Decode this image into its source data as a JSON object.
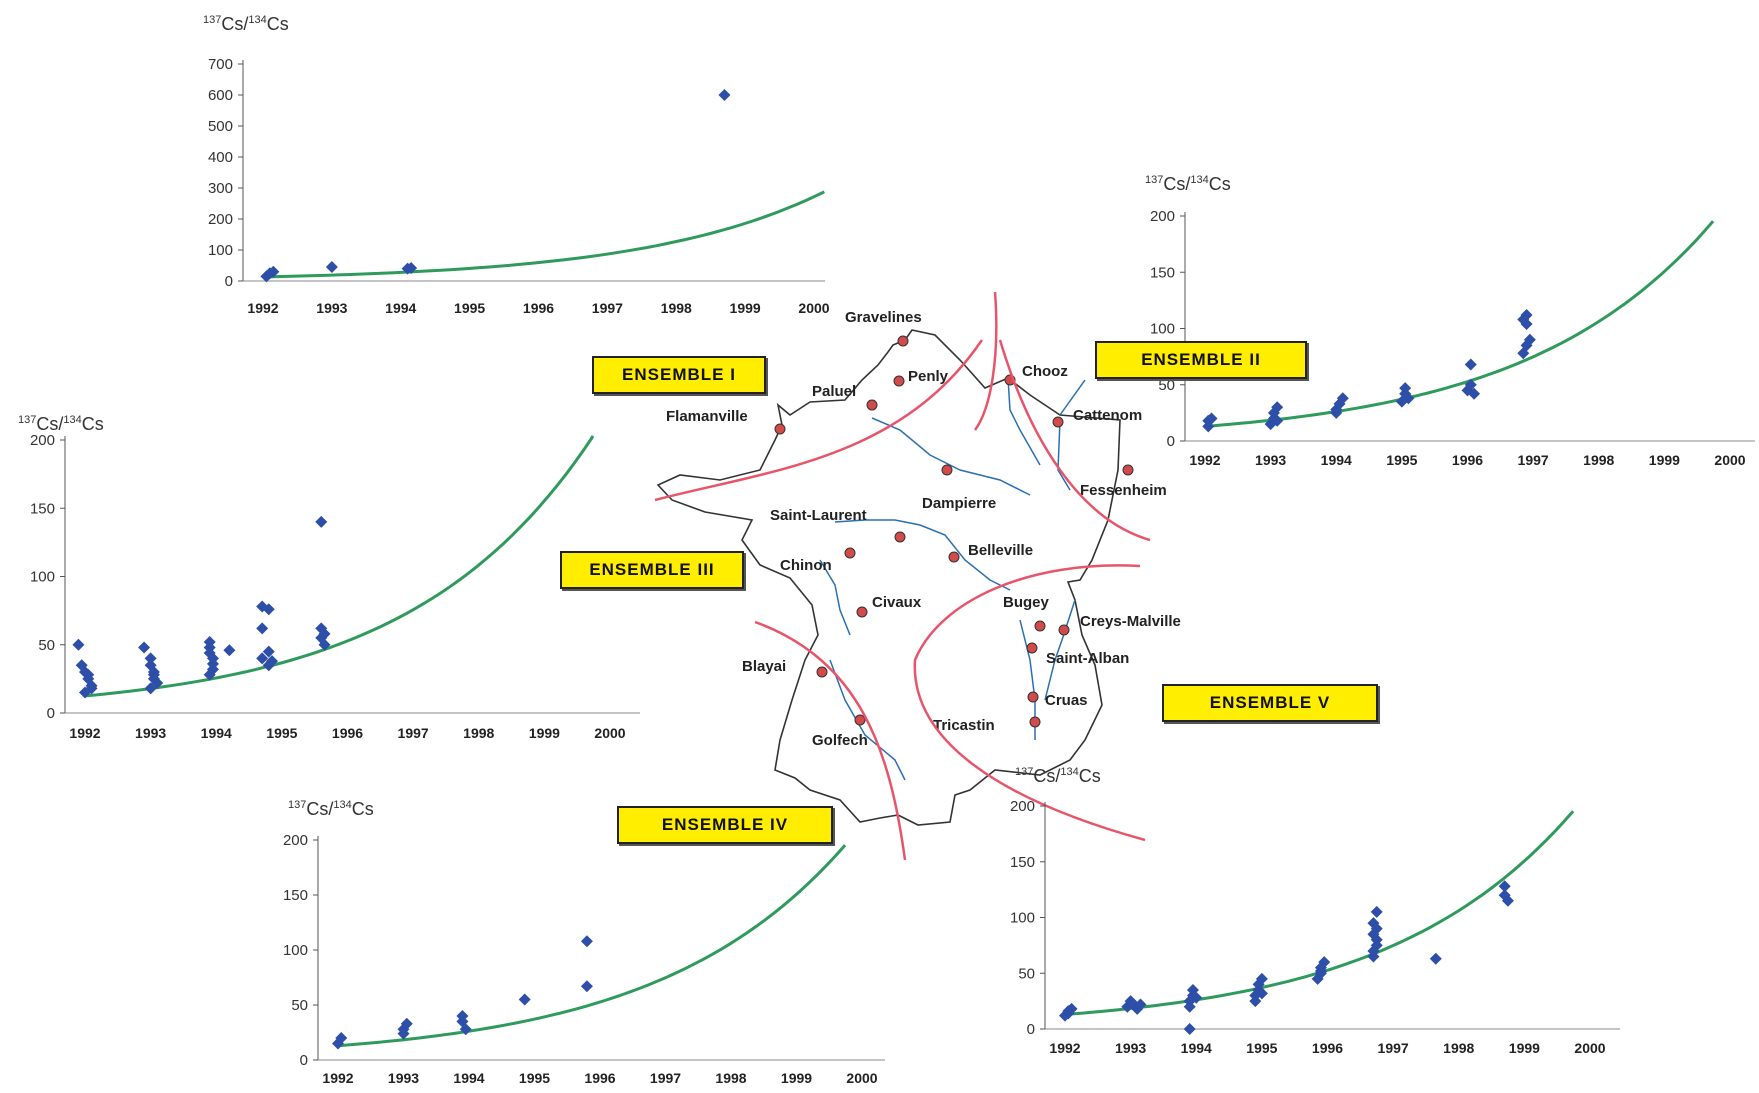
{
  "colors": {
    "point": "#2d4fa8",
    "trend": "#2e9a5c",
    "boundary": "#e8556a",
    "river": "#2a6fb3",
    "site": "#d24a4a",
    "outline": "#333333",
    "label_bg": "#ffee00"
  },
  "ensembles": [
    {
      "id": "I",
      "label": "ENSEMBLE I"
    },
    {
      "id": "II",
      "label": "ENSEMBLE II"
    },
    {
      "id": "III",
      "label": "ENSEMBLE III"
    },
    {
      "id": "IV",
      "label": "ENSEMBLE IV"
    },
    {
      "id": "V",
      "label": "ENSEMBLE V"
    }
  ],
  "map": {
    "sites": [
      "Gravelines",
      "Penly",
      "Paluel",
      "Flamanville",
      "Chooz",
      "Cattenom",
      "Fessenheim",
      "Dampierre",
      "Saint-Laurent",
      "Belleville",
      "Chinon",
      "Civaux",
      "Bugey",
      "Creys-Malville",
      "Saint-Alban",
      "Cruas",
      "Tricastin",
      "Blayai",
      "Golfech"
    ]
  },
  "chart_data": [
    {
      "id": "I",
      "type": "scatter",
      "ylabel_main": "Cs/",
      "ylabel_sup1": "137",
      "ylabel_sup2": "134",
      "ylabel_tail": "Cs",
      "ylim": [
        0,
        700
      ],
      "yticks": [
        0,
        100,
        200,
        300,
        400,
        500,
        600,
        700
      ],
      "xlim": [
        1992,
        2000
      ],
      "xticks": [
        1992,
        1993,
        1994,
        1995,
        1996,
        1997,
        1998,
        1999,
        2000
      ],
      "points": [
        [
          1992.05,
          15
        ],
        [
          1992.1,
          25
        ],
        [
          1992.15,
          30
        ],
        [
          1993.0,
          45
        ],
        [
          1994.1,
          40
        ],
        [
          1994.15,
          42
        ],
        [
          1998.7,
          600
        ]
      ],
      "trend": {
        "a": 13,
        "r": 0.38
      }
    },
    {
      "id": "II",
      "type": "scatter",
      "ylabel_main": "Cs/",
      "ylabel_sup1": "137",
      "ylabel_sup2": "134",
      "ylabel_tail": "Cs",
      "ylim": [
        0,
        200
      ],
      "yticks": [
        0,
        50,
        100,
        150,
        200
      ],
      "xlim": [
        1992,
        2000
      ],
      "xticks": [
        1992,
        1993,
        1994,
        1995,
        1996,
        1997,
        1998,
        1999,
        2000
      ],
      "points": [
        [
          1992.05,
          13
        ],
        [
          1992.05,
          18
        ],
        [
          1992.1,
          20
        ],
        [
          1993.0,
          15
        ],
        [
          1993.05,
          20
        ],
        [
          1993.05,
          25
        ],
        [
          1993.1,
          30
        ],
        [
          1993.1,
          18
        ],
        [
          1994.0,
          28
        ],
        [
          1994.05,
          33
        ],
        [
          1994.1,
          38
        ],
        [
          1994.0,
          25
        ],
        [
          1995.0,
          35
        ],
        [
          1995.05,
          42
        ],
        [
          1995.05,
          47
        ],
        [
          1995.1,
          38
        ],
        [
          1996.0,
          45
        ],
        [
          1996.05,
          50
        ],
        [
          1996.05,
          68
        ],
        [
          1996.1,
          42
        ],
        [
          1996.85,
          78
        ],
        [
          1996.9,
          85
        ],
        [
          1996.95,
          90
        ],
        [
          1996.85,
          108
        ],
        [
          1996.9,
          112
        ],
        [
          1996.9,
          104
        ]
      ],
      "trend": {
        "a": 13,
        "r": 0.35
      }
    },
    {
      "id": "III",
      "type": "scatter",
      "ylabel_main": "Cs/",
      "ylabel_sup1": "137",
      "ylabel_sup2": "134",
      "ylabel_tail": "Cs",
      "ylim": [
        0,
        200
      ],
      "yticks": [
        0,
        50,
        100,
        150,
        200
      ],
      "xlim": [
        1992,
        2000
      ],
      "xticks": [
        1992,
        1993,
        1994,
        1995,
        1996,
        1997,
        1998,
        1999,
        2000
      ],
      "points": [
        [
          1991.9,
          50
        ],
        [
          1991.95,
          35
        ],
        [
          1992.0,
          30
        ],
        [
          1992.05,
          25
        ],
        [
          1992.1,
          20
        ],
        [
          1992.0,
          15
        ],
        [
          1992.1,
          18
        ],
        [
          1992.05,
          28
        ],
        [
          1992.9,
          48
        ],
        [
          1993.0,
          40
        ],
        [
          1993.0,
          35
        ],
        [
          1993.05,
          30
        ],
        [
          1993.05,
          25
        ],
        [
          1993.1,
          22
        ],
        [
          1993.0,
          18
        ],
        [
          1993.05,
          28
        ],
        [
          1993.9,
          52
        ],
        [
          1993.9,
          48
        ],
        [
          1993.9,
          44
        ],
        [
          1993.95,
          40
        ],
        [
          1993.95,
          36
        ],
        [
          1993.95,
          32
        ],
        [
          1993.9,
          28
        ],
        [
          1994.2,
          46
        ],
        [
          1994.7,
          78
        ],
        [
          1994.8,
          76
        ],
        [
          1994.7,
          62
        ],
        [
          1994.7,
          40
        ],
        [
          1994.8,
          45
        ],
        [
          1994.85,
          38
        ],
        [
          1994.8,
          35
        ],
        [
          1995.6,
          140
        ],
        [
          1995.6,
          62
        ],
        [
          1995.65,
          58
        ],
        [
          1995.6,
          55
        ],
        [
          1995.65,
          50
        ]
      ],
      "trend": {
        "a": 12.5,
        "r": 0.36
      }
    },
    {
      "id": "IV",
      "type": "scatter",
      "ylabel_main": "Cs/",
      "ylabel_sup1": "137",
      "ylabel_sup2": "134",
      "ylabel_tail": "Cs",
      "ylim": [
        0,
        200
      ],
      "yticks": [
        0,
        50,
        100,
        150,
        200
      ],
      "xlim": [
        1992,
        2000
      ],
      "xticks": [
        1992,
        1993,
        1994,
        1995,
        1996,
        1997,
        1998,
        1999,
        2000
      ],
      "points": [
        [
          1992.0,
          15
        ],
        [
          1992.05,
          20
        ],
        [
          1993.0,
          28
        ],
        [
          1993.05,
          33
        ],
        [
          1993.0,
          24
        ],
        [
          1993.9,
          40
        ],
        [
          1993.9,
          35
        ],
        [
          1993.95,
          28
        ],
        [
          1994.85,
          55
        ],
        [
          1995.8,
          108
        ],
        [
          1995.8,
          67
        ]
      ],
      "trend": {
        "a": 13,
        "r": 0.35
      }
    },
    {
      "id": "V",
      "type": "scatter",
      "ylabel_main": "Cs/",
      "ylabel_sup1": "137",
      "ylabel_sup2": "134",
      "ylabel_tail": "Cs",
      "ylim": [
        0,
        200
      ],
      "yticks": [
        0,
        50,
        100,
        150,
        200
      ],
      "xlim": [
        1992,
        2000
      ],
      "xticks": [
        1992,
        1993,
        1994,
        1995,
        1996,
        1997,
        1998,
        1999,
        2000
      ],
      "points": [
        [
          1992.0,
          12
        ],
        [
          1992.05,
          16
        ],
        [
          1992.1,
          18
        ],
        [
          1992.05,
          14
        ],
        [
          1992.95,
          20
        ],
        [
          1993.0,
          25
        ],
        [
          1993.05,
          22
        ],
        [
          1993.1,
          18
        ],
        [
          1993.15,
          22
        ],
        [
          1993.9,
          0
        ],
        [
          1993.9,
          20
        ],
        [
          1993.9,
          25
        ],
        [
          1993.95,
          30
        ],
        [
          1993.95,
          35
        ],
        [
          1994.0,
          28
        ],
        [
          1994.9,
          25
        ],
        [
          1994.9,
          30
        ],
        [
          1994.95,
          35
        ],
        [
          1994.95,
          40
        ],
        [
          1995.0,
          45
        ],
        [
          1995.0,
          32
        ],
        [
          1995.85,
          45
        ],
        [
          1995.9,
          50
        ],
        [
          1995.9,
          55
        ],
        [
          1995.95,
          60
        ],
        [
          1995.9,
          52
        ],
        [
          1996.7,
          65
        ],
        [
          1996.7,
          70
        ],
        [
          1996.75,
          75
        ],
        [
          1996.75,
          80
        ],
        [
          1996.7,
          85
        ],
        [
          1996.75,
          90
        ],
        [
          1996.7,
          95
        ],
        [
          1996.75,
          105
        ],
        [
          1997.65,
          63
        ],
        [
          1998.7,
          120
        ],
        [
          1998.7,
          128
        ],
        [
          1998.75,
          115
        ]
      ],
      "trend": {
        "a": 13,
        "r": 0.35
      }
    }
  ]
}
